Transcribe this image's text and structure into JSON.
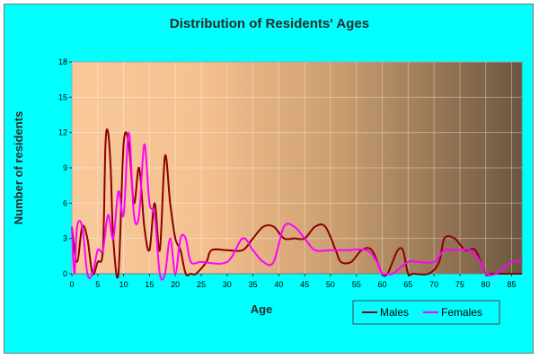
{
  "chart_data": {
    "type": "line",
    "title": "Distribution of Residents' Ages",
    "xlabel": "Age",
    "ylabel": "Number of residents",
    "xlim": [
      0,
      87
    ],
    "ylim": [
      0,
      18
    ],
    "x_ticks": [
      "0",
      "5",
      "10",
      "15",
      "20",
      "25",
      "30",
      "35",
      "40",
      "45",
      "50",
      "55",
      "60",
      "65",
      "70",
      "75",
      "80",
      "85"
    ],
    "y_ticks": [
      "0",
      "3",
      "6",
      "9",
      "12",
      "15",
      "18"
    ],
    "legend_position": "bottom-right",
    "series": [
      {
        "name": "Males",
        "color": "#8B0000",
        "points": [
          [
            0,
            4
          ],
          [
            1,
            1
          ],
          [
            2,
            4
          ],
          [
            3,
            3
          ],
          [
            4,
            0
          ],
          [
            5,
            1
          ],
          [
            6,
            2
          ],
          [
            6.5,
            11
          ],
          [
            7,
            12
          ],
          [
            7.5,
            9
          ],
          [
            8,
            3
          ],
          [
            9,
            0
          ],
          [
            10,
            11
          ],
          [
            11,
            11
          ],
          [
            12,
            6
          ],
          [
            13,
            9
          ],
          [
            14,
            4
          ],
          [
            15,
            2
          ],
          [
            16,
            6
          ],
          [
            17,
            2
          ],
          [
            18,
            10
          ],
          [
            19,
            6
          ],
          [
            20,
            3
          ],
          [
            21,
            2
          ],
          [
            22,
            0
          ],
          [
            23,
            0
          ],
          [
            24,
            0
          ],
          [
            26,
            1
          ],
          [
            27,
            2
          ],
          [
            30,
            2
          ],
          [
            33,
            2
          ],
          [
            35,
            3
          ],
          [
            37,
            4
          ],
          [
            39,
            4
          ],
          [
            41,
            3
          ],
          [
            43,
            3
          ],
          [
            45,
            3
          ],
          [
            47,
            4
          ],
          [
            49,
            4
          ],
          [
            51,
            2
          ],
          [
            52,
            1
          ],
          [
            54,
            1
          ],
          [
            56,
            2
          ],
          [
            58,
            2
          ],
          [
            60,
            0
          ],
          [
            61,
            0
          ],
          [
            62,
            1
          ],
          [
            63,
            2
          ],
          [
            64,
            2
          ],
          [
            65,
            0
          ],
          [
            66,
            0
          ],
          [
            69,
            0
          ],
          [
            71,
            1
          ],
          [
            72,
            3
          ],
          [
            74,
            3
          ],
          [
            76,
            2
          ],
          [
            78,
            2
          ],
          [
            80,
            0
          ],
          [
            81,
            0
          ],
          [
            82,
            0
          ],
          [
            84,
            0
          ],
          [
            87,
            0
          ]
        ]
      },
      {
        "name": "Females",
        "color": "#FF00FF",
        "points": [
          [
            0,
            4
          ],
          [
            0.5,
            0
          ],
          [
            1,
            4
          ],
          [
            2,
            4
          ],
          [
            3,
            0
          ],
          [
            4,
            0
          ],
          [
            5,
            2
          ],
          [
            6,
            2
          ],
          [
            7,
            5
          ],
          [
            8,
            3
          ],
          [
            9,
            7
          ],
          [
            10,
            5
          ],
          [
            11,
            12
          ],
          [
            12,
            5
          ],
          [
            13,
            5
          ],
          [
            14,
            11
          ],
          [
            15,
            6
          ],
          [
            16,
            5
          ],
          [
            17,
            0
          ],
          [
            18,
            0
          ],
          [
            19,
            3
          ],
          [
            20,
            0
          ],
          [
            21,
            3
          ],
          [
            22,
            3
          ],
          [
            23,
            1
          ],
          [
            25,
            1
          ],
          [
            30,
            1
          ],
          [
            33,
            3
          ],
          [
            35,
            2
          ],
          [
            37,
            1
          ],
          [
            39,
            1
          ],
          [
            41,
            4
          ],
          [
            43,
            4
          ],
          [
            45,
            3
          ],
          [
            47,
            2
          ],
          [
            50,
            2
          ],
          [
            53,
            2
          ],
          [
            57,
            2
          ],
          [
            59,
            1
          ],
          [
            60,
            0
          ],
          [
            61,
            0
          ],
          [
            62,
            0
          ],
          [
            65,
            1
          ],
          [
            67,
            1
          ],
          [
            70,
            1
          ],
          [
            72,
            2
          ],
          [
            74,
            2
          ],
          [
            77,
            2
          ],
          [
            79,
            1
          ],
          [
            80,
            0
          ],
          [
            82,
            0
          ],
          [
            85,
            1
          ],
          [
            87,
            1
          ]
        ]
      }
    ]
  }
}
